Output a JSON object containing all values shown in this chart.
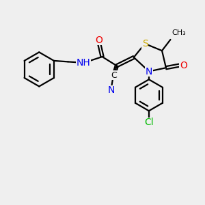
{
  "background_color": "#efefef",
  "atom_colors": {
    "C": "#000000",
    "N": "#0000ee",
    "O": "#ee0000",
    "S": "#ccaa00",
    "Cl": "#00bb00",
    "H": "#0000ee"
  },
  "bond_color": "#000000",
  "bond_width": 1.6,
  "font_size_atom": 10,
  "figsize": [
    3.0,
    3.0
  ],
  "dpi": 100
}
